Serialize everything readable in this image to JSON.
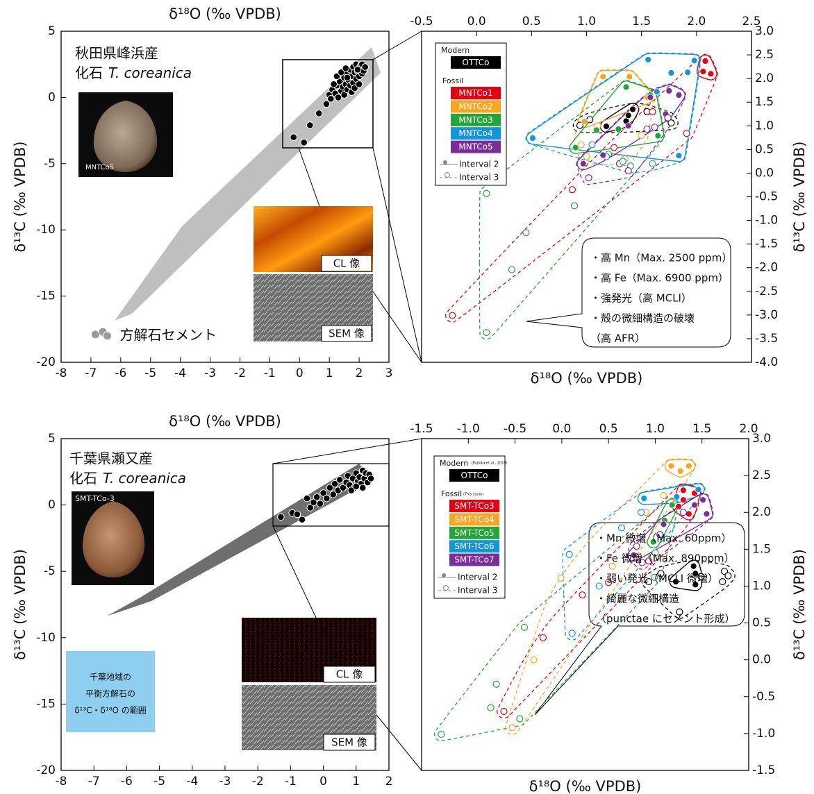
{
  "chart_data": [
    {
      "type": "scatter",
      "x_label": "δ¹⁸O (‰ VPDB)",
      "y_label": "δ¹³C (‰ VPDB)",
      "xlim": [
        -8,
        3
      ],
      "xticks": [
        -8,
        -7,
        -6,
        -5,
        -4,
        -3,
        -2,
        -1,
        0,
        1,
        2,
        3
      ],
      "ylim": [
        -20,
        5
      ],
      "yticks": [
        -20,
        -15,
        -10,
        -5,
        0,
        5
      ],
      "annotations": {
        "locality": "秋田県峰浜産",
        "fossil": "化石",
        "species": "T. coreanica",
        "photo_label": "MNTCo5",
        "cl_label": "CL 像",
        "sem_label": "SEM 像"
      },
      "series": [
        {
          "color": "#000000",
          "x": [
            -0.2,
            0.15,
            0.35,
            0.65,
            0.9,
            1.0,
            1.05,
            1.1,
            1.2,
            1.25,
            1.3,
            1.35,
            1.4,
            1.45,
            1.5,
            1.5,
            1.55,
            1.6,
            1.6,
            1.65,
            1.7,
            1.7,
            1.75,
            1.8,
            1.8,
            1.85,
            1.9,
            1.9,
            1.95,
            2.0,
            2.0,
            2.05,
            2.1,
            2.1,
            2.15,
            2.2,
            1.25,
            1.4,
            1.55,
            1.75,
            1.85,
            2.0,
            1.15,
            1.6,
            1.95
          ],
          "values": [
            -3.0,
            -3.4,
            -2.1,
            -1.2,
            -0.5,
            0.2,
            -0.1,
            0.6,
            0.3,
            0.9,
            0.0,
            1.2,
            0.5,
            0.8,
            1.5,
            0.2,
            1.0,
            1.8,
            0.6,
            1.3,
            2.1,
            0.9,
            1.6,
            2.3,
            1.1,
            1.9,
            2.5,
            1.4,
            2.0,
            2.2,
            1.6,
            2.4,
            1.8,
            2.5,
            2.0,
            2.3,
            1.6,
            1.9,
            2.2,
            0.4,
            0.7,
            1.0,
            1.0,
            1.5,
            2.1
          ]
        },
        {
          "name": "方解石セメント",
          "color": "#9a9a9a",
          "x": [
            -6.85,
            -6.6,
            -6.45
          ],
          "values": [
            -17.9,
            -17.7,
            -18.0
          ]
        }
      ]
    },
    {
      "type": "scatter",
      "x_label": "δ¹⁸O (‰ VPDB)",
      "y_label": "δ¹³C (‰ VPDB)",
      "xlim": [
        -0.5,
        2.5
      ],
      "xticks": [
        -0.5,
        {
          "value": 0,
          "label": "0.0"
        },
        0.5,
        {
          "value": 1,
          "label": "1.0"
        },
        1.5,
        {
          "value": 2,
          "label": "2.0"
        },
        2.5
      ],
      "ylim": [
        -4,
        3
      ],
      "yticks": [
        {
          "value": -4,
          "label": "-4.0"
        },
        -3.5,
        {
          "value": -3,
          "label": "-3.0"
        },
        -2.5,
        {
          "value": -2,
          "label": "-2.0"
        },
        -1.5,
        {
          "value": -1,
          "label": "-1.0"
        },
        -0.5,
        {
          "value": 0,
          "label": "0.0"
        },
        0.5,
        {
          "value": 1,
          "label": "1.0"
        },
        1.5,
        {
          "value": 2,
          "label": "2.0"
        },
        2.5,
        {
          "value": 3,
          "label": "3.0"
        }
      ],
      "legend": {
        "modern": "Modern",
        "fossil": "Fossil",
        "interval_2": "Interval 2",
        "interval_3": "Interval 3"
      },
      "series": [
        {
          "name": "OTTCo",
          "color": "#000000",
          "x": [
            1.18,
            1.38,
            1.42,
            1.36
          ],
          "values": [
            0.99,
            1.22,
            1.35,
            1.1
          ],
          "x_open": [
            0.94,
            1.03,
            1.74,
            1.77,
            1.55
          ],
          "values_open": [
            1.01,
            1.13,
            1.16,
            1.06,
            1.3
          ]
        },
        {
          "name": "MNTCo1",
          "color": "#e60012",
          "x": [
            2.08,
            2.06,
            2.13
          ],
          "values": [
            2.37,
            2.15,
            2.1
          ],
          "x_open": [
            -0.22,
            0.87,
            1.25,
            1.91,
            1.6,
            1.3
          ],
          "values_open": [
            -3.01,
            -0.35,
            0.54,
            0.84,
            1.3,
            0.2
          ]
        },
        {
          "name": "MNTCo2",
          "color": "#f5a623",
          "x": [
            1.15,
            1.39,
            0.98,
            1.55
          ],
          "values": [
            2.04,
            2.04,
            1.09,
            1.6
          ],
          "x_open": [
            1.1,
            1.35,
            1.0,
            1.5,
            0.95
          ],
          "values_open": [
            1.0,
            0.3,
            0.35,
            0.8,
            0.6
          ]
        },
        {
          "name": "MNTCo3",
          "color": "#22a638",
          "x": [
            1.36,
            1.09,
            0.9,
            1.29,
            1.58,
            1.65
          ],
          "values": [
            1.82,
            0.91,
            0.54,
            0.93,
            1.65,
            0.79
          ],
          "x_open": [
            0.09,
            0.32,
            0.09,
            0.45,
            0.89,
            1.2
          ],
          "values_open": [
            -0.43,
            -2.04,
            -3.37,
            -1.26,
            -0.69,
            0.4
          ]
        },
        {
          "name": "MNTCo4",
          "color": "#1296db",
          "x": [
            0.51,
            1.56,
            1.77,
            1.92,
            1.64,
            1.84,
            1.98
          ],
          "values": [
            0.74,
            2.4,
            2.12,
            2.13,
            1.72,
            0.37,
            2.38
          ],
          "x_open": [
            1.33,
            1.4,
            1.18,
            1.05,
            1.6
          ],
          "values_open": [
            0.25,
            0.15,
            0.35,
            0.6,
            0.2
          ]
        },
        {
          "name": "MNTCo5",
          "color": "#7b2d9b",
          "x": [
            1.15,
            1.38,
            1.58,
            1.75,
            1.84,
            1.72,
            0.97
          ],
          "values": [
            0.38,
            1.0,
            1.6,
            1.74,
            1.65,
            1.25,
            0.2
          ],
          "x_open": [
            1.55,
            1.62,
            1.74,
            1.02,
            1.38
          ],
          "values_open": [
            0.93,
            0.97,
            1.17,
            -0.1,
            0.05
          ]
        }
      ],
      "callout": [
        "・高 Mn（Max. 2500 ppm）",
        "・高 Fe（Max. 6900 ppm）",
        "・強発光（高 MCLI）",
        "・殻の微細構造の破壊",
        "（高 AFR）"
      ]
    },
    {
      "type": "scatter",
      "x_label": "δ¹⁸O (‰ VPDB)",
      "y_label": "δ¹³C (‰ VPDB)",
      "xlim": [
        -8,
        2
      ],
      "xticks": [
        -8,
        -7,
        -6,
        -5,
        -4,
        -3,
        -2,
        -1,
        0,
        1,
        2
      ],
      "ylim": [
        -20,
        5
      ],
      "yticks": [
        -20,
        -15,
        -10,
        -5,
        0,
        5
      ],
      "annotations": {
        "locality": "千葉県瀬又産",
        "fossil": "化石",
        "species": "T. coreanica",
        "photo_label": "SMT-TCo-3",
        "cl_label": "CL 像",
        "sem_label": "SEM 像",
        "range_note": [
          "千葉地域の",
          "平衡方解石の",
          "δ¹³C・δ¹⁸O の範囲"
        ]
      },
      "series": [
        {
          "color": "#000000",
          "x": [
            -1.3,
            -0.95,
            -0.8,
            -0.65,
            -0.5,
            -0.4,
            -0.3,
            -0.2,
            -0.1,
            0.0,
            0.1,
            0.2,
            0.3,
            0.35,
            0.45,
            0.5,
            0.6,
            0.7,
            0.75,
            0.8,
            0.9,
            0.95,
            1.0,
            1.05,
            1.1,
            1.15,
            1.2,
            1.25,
            1.3,
            1.35,
            1.4,
            1.45,
            0.85,
            1.0,
            1.2
          ],
          "values": [
            -0.9,
            -0.6,
            -0.7,
            -1.1,
            0.5,
            -0.2,
            0.2,
            0.6,
            0.1,
            0.9,
            0.5,
            1.3,
            0.8,
            1.6,
            1.1,
            1.9,
            1.3,
            1.7,
            2.2,
            1.5,
            2.0,
            1.3,
            2.4,
            1.8,
            2.1,
            1.6,
            2.6,
            2.0,
            2.4,
            1.7,
            2.3,
            2.0,
            1.1,
            1.4,
            1.3
          ]
        }
      ]
    },
    {
      "type": "scatter",
      "x_label": "δ¹⁸O (‰ VPDB)",
      "y_label": "δ¹³C (‰ VPDB)",
      "xlim": [
        -1.5,
        2
      ],
      "xticks": [
        -1.5,
        {
          "value": -1,
          "label": "-1.0"
        },
        -0.5,
        {
          "value": 0,
          "label": "0.0"
        },
        0.5,
        {
          "value": 1,
          "label": "1.0"
        },
        1.5,
        {
          "value": 2,
          "label": "2.0"
        }
      ],
      "ylim": [
        -1.5,
        3
      ],
      "yticks": [
        -1.5,
        {
          "value": -1,
          "label": "-1.0"
        },
        -0.5,
        {
          "value": 0,
          "label": "0.0"
        },
        0.5,
        {
          "value": 1,
          "label": "1.0"
        },
        1.5,
        {
          "value": 2,
          "label": "2.0"
        },
        2.5,
        {
          "value": 3,
          "label": "3.0"
        }
      ],
      "legend": {
        "modern": "Modern",
        "modern_source": "(Fujioka et al., 2019)",
        "fossil": "Fossil",
        "fossil_source": "(This study)",
        "interval_2": "Interval 2",
        "interval_3": "Interval 3"
      },
      "series": [
        {
          "name": "OTTCo",
          "color": "#000000",
          "x": [
            1.22,
            1.43,
            1.43,
            1.41
          ],
          "values": [
            1.06,
            1.17,
            1.02,
            1.27
          ],
          "x_open": [
            1.26,
            1.72,
            1.74,
            1.78,
            1.49,
            1.06,
            0.93
          ],
          "values_open": [
            0.65,
            1.06,
            1.2,
            1.14,
            1.13,
            1.17,
            1.06
          ]
        },
        {
          "name": "SMT-TCo3",
          "color": "#e60012",
          "x": [
            1.3,
            1.3,
            1.25,
            1.36,
            1.42
          ],
          "values": [
            2.3,
            2.17,
            2.08,
            1.98,
            2.26
          ],
          "x_open": [
            -0.62,
            0.22,
            0.93,
            -0.2,
            0.5
          ],
          "values_open": [
            -0.7,
            0.88,
            1.34,
            0.3,
            1.05
          ]
        },
        {
          "name": "SMT-TCo4",
          "color": "#f5a623",
          "x": [
            1.17,
            1.36,
            1.27
          ],
          "values": [
            2.63,
            2.63,
            2.56
          ],
          "x_open": [
            -0.53,
            -0.01,
            0.54,
            1.09,
            0.9,
            -0.3
          ],
          "values_open": [
            -0.92,
            1.11,
            1.27,
            2.23,
            2.0,
            0.0
          ]
        },
        {
          "name": "SMT-TCo5",
          "color": "#22a638",
          "x": [
            1.1,
            0.98,
            1.18
          ],
          "values": [
            1.89,
            1.6,
            2.1
          ],
          "x_open": [
            -1.29,
            -0.76,
            -0.4,
            -0.7,
            0.99,
            1.0,
            -0.45
          ],
          "values_open": [
            -1.01,
            -0.65,
            0.44,
            -0.33,
            1.12,
            1.45,
            -0.8
          ]
        },
        {
          "name": "SMT-TCo6",
          "color": "#1296db",
          "x": [
            0.88,
            1.46,
            1.23
          ],
          "values": [
            2.19,
            2.31,
            2.21
          ],
          "x_open": [
            0.11,
            0.08,
            0.64,
            0.4,
            0.85
          ],
          "values_open": [
            0.36,
            1.43,
            1.79,
            1.0,
            2.0
          ]
        },
        {
          "name": "SMT-TCo7",
          "color": "#7b2d9b",
          "x": [
            1.42,
            1.51,
            1.55,
            0.77,
            1.09
          ],
          "values": [
            2.1,
            2.17,
            1.98,
            1.42,
            1.84
          ],
          "x_open": [
            0.8,
            0.86,
            1.3,
            1.05
          ],
          "values_open": [
            1.54,
            1.32,
            2.0,
            1.7
          ]
        }
      ],
      "callout": [
        "・Mn 微増（Max. 60ppm）",
        "・Fe 微増（Max. 890ppm）",
        "・弱い発光（MCLI 微増）",
        "・綺麗な微細構造",
        "（punctae にセメント形成）"
      ]
    }
  ]
}
